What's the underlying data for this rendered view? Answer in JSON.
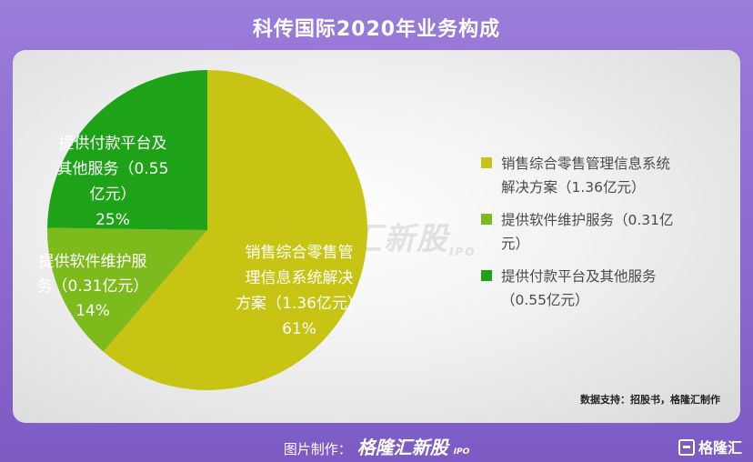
{
  "title": "科传国际2020年业务构成",
  "watermark": {
    "brand": "格隆汇新股",
    "suffix": "IPO"
  },
  "chart_data": {
    "type": "pie",
    "title": "科传国际2020年业务构成",
    "slices": [
      {
        "name": "销售综合零售管理信息系统解决方案（1.36亿元）",
        "value": 1.36,
        "percent": 61,
        "color": "#c8c414",
        "label_lines": [
          "销售综合零售管",
          "理信息系统解决",
          "方案（1.36亿元）",
          "61%"
        ]
      },
      {
        "name": "提供软件维护服务（0.31亿元）",
        "value": 0.31,
        "percent": 14,
        "color": "#7dba1c",
        "label_lines": [
          "提供软件维护服",
          "务（0.31亿元）",
          "14%"
        ]
      },
      {
        "name": "提供付款平台及其他服务（0.55亿元）",
        "value": 0.55,
        "percent": 25,
        "color": "#1ea218",
        "label_lines": [
          "提供付款平台及",
          "其他服务（0.55",
          "亿元）",
          "25%"
        ]
      }
    ],
    "legend": {
      "placement": "right",
      "items": [
        {
          "lines": [
            "销售综合零售管理信息系统",
            "解决方案（1.36亿元）"
          ],
          "color": "#c8c414"
        },
        {
          "lines": [
            "提供软件维护服务（0.31亿",
            "元）"
          ],
          "color": "#7dba1c"
        },
        {
          "lines": [
            "提供付款平台及其他服务",
            "（0.55亿元）"
          ],
          "color": "#1ea218"
        }
      ]
    }
  },
  "source": "数据支持：招股书，格隆汇制作",
  "footer": {
    "credit": "图片制作：",
    "brand": "格隆汇新股",
    "brand_suffix": "IPO",
    "logo": "格隆汇",
    "logo_icon": "gelonghui-logo-icon"
  }
}
